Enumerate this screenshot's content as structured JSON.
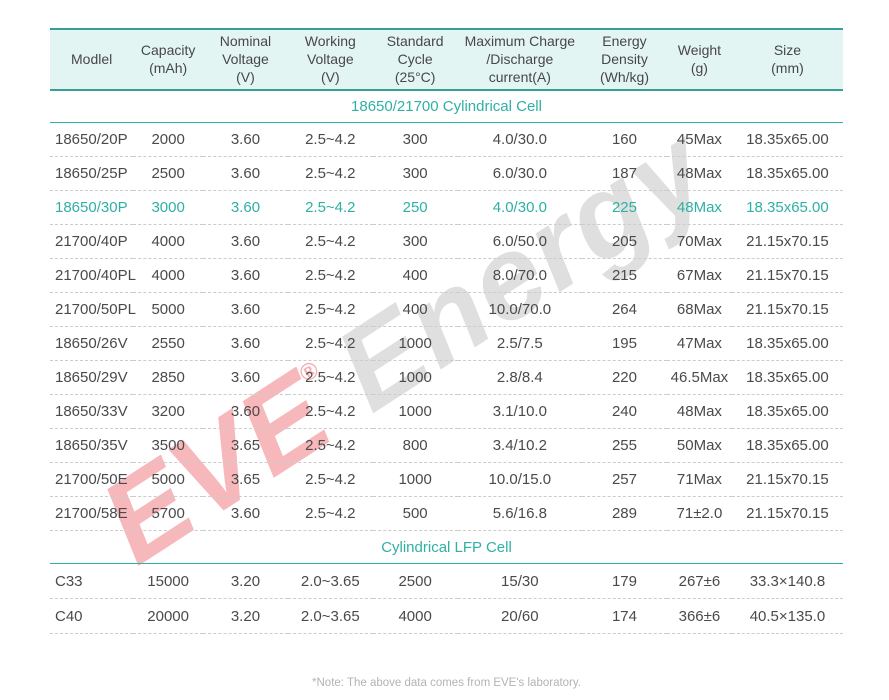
{
  "watermark": {
    "brand": "EVE",
    "registered": "®",
    "suffix": "Energy",
    "brand_color": "#e94d56",
    "suffix_color": "#bdbdbd"
  },
  "colors": {
    "accent_teal": "#2fb0a4",
    "header_band_bg": "#e3f5f3",
    "header_band_border": "#379f98",
    "body_text": "#4a4a4a",
    "row_divider": "#cccccc",
    "note_text": "#b3b3b3"
  },
  "table": {
    "columns": [
      "Modlel",
      "Capacity\n(mAh)",
      "Nominal\nVoltage\n(V)",
      "Working\nVoltage\n(V)",
      "Standard\nCycle\n(25°C)",
      "Maximum Charge\n/Discharge\ncurrent(A)",
      "Energy\nDensity\n(Wh/kg)",
      "Weight\n(g)",
      "Size\n(mm)"
    ],
    "highlight_model": "18650/30P",
    "sections": [
      {
        "title": "18650/21700 Cylindrical Cell",
        "rows": [
          [
            "18650/20P",
            "2000",
            "3.60",
            "2.5~4.2",
            "300",
            "4.0/30.0",
            "160",
            "45Max",
            "18.35x65.00"
          ],
          [
            "18650/25P",
            "2500",
            "3.60",
            "2.5~4.2",
            "300",
            "6.0/30.0",
            "187",
            "48Max",
            "18.35x65.00"
          ],
          [
            "18650/30P",
            "3000",
            "3.60",
            "2.5~4.2",
            "250",
            "4.0/30.0",
            "225",
            "48Max",
            "18.35x65.00"
          ],
          [
            "21700/40P",
            "4000",
            "3.60",
            "2.5~4.2",
            "300",
            "6.0/50.0",
            "205",
            "70Max",
            "21.15x70.15"
          ],
          [
            "21700/40PL",
            "4000",
            "3.60",
            "2.5~4.2",
            "400",
            "8.0/70.0",
            "215",
            "67Max",
            "21.15x70.15"
          ],
          [
            "21700/50PL",
            "5000",
            "3.60",
            "2.5~4.2",
            "400",
            "10.0/70.0",
            "264",
            "68Max",
            "21.15x70.15"
          ],
          [
            "18650/26V",
            "2550",
            "3.60",
            "2.5~4.2",
            "1000",
            "2.5/7.5",
            "195",
            "47Max",
            "18.35x65.00"
          ],
          [
            "18650/29V",
            "2850",
            "3.60",
            "2.5~4.2",
            "1000",
            "2.8/8.4",
            "220",
            "46.5Max",
            "18.35x65.00"
          ],
          [
            "18650/33V",
            "3200",
            "3.60",
            "2.5~4.2",
            "1000",
            "3.1/10.0",
            "240",
            "48Max",
            "18.35x65.00"
          ],
          [
            "18650/35V",
            "3500",
            "3.65",
            "2.5~4.2",
            "800",
            "3.4/10.2",
            "255",
            "50Max",
            "18.35x65.00"
          ],
          [
            "21700/50E",
            "5000",
            "3.65",
            "2.5~4.2",
            "1000",
            "10.0/15.0",
            "257",
            "71Max",
            "21.15x70.15"
          ],
          [
            "21700/58E",
            "5700",
            "3.60",
            "2.5~4.2",
            "500",
            "5.6/16.8",
            "289",
            "71±2.0",
            "21.15x70.15"
          ]
        ]
      },
      {
        "title": "Cylindrical LFP Cell",
        "rows": [
          [
            "C33",
            "15000",
            "3.20",
            "2.0~3.65",
            "2500",
            "15/30",
            "179",
            "267±6",
            "33.3×140.8"
          ],
          [
            "C40",
            "20000",
            "3.20",
            "2.0~3.65",
            "4000",
            "20/60",
            "174",
            "366±6",
            "40.5×135.0"
          ]
        ]
      }
    ]
  },
  "note": "*Note: The above data comes from EVE's laboratory."
}
